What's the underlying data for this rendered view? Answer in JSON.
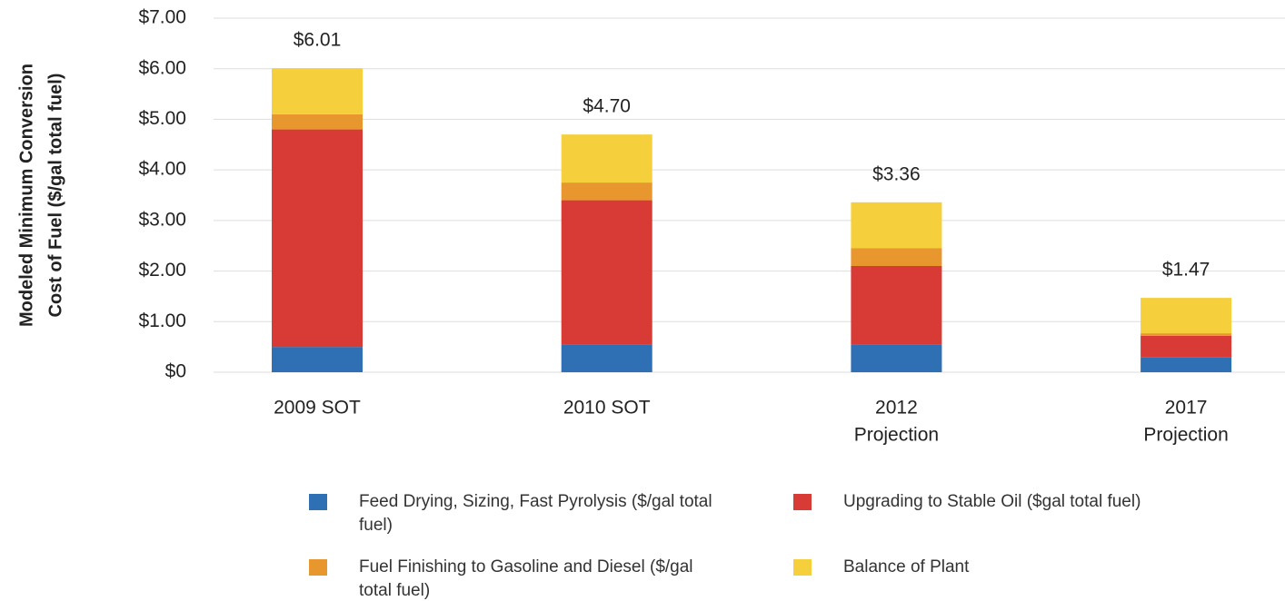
{
  "chart_data": {
    "type": "stacked_bar",
    "ylabel": [
      "Modeled Minimum Conversion",
      "Cost of Fuel ($/gal total fuel)"
    ],
    "categories": [
      [
        "2009 SOT"
      ],
      [
        "2010 SOT"
      ],
      [
        "2012",
        "Projection"
      ],
      [
        "2017",
        "Projection"
      ]
    ],
    "series": [
      {
        "name": "Feed Drying, Sizing, Fast Pyrolysis ($/gal total fuel)",
        "color": "#2f6fb3",
        "values": [
          0.5,
          0.55,
          0.55,
          0.3
        ]
      },
      {
        "name": "Upgrading to Stable Oil ($gal total fuel)",
        "color": "#d83a36",
        "values": [
          4.3,
          2.85,
          1.55,
          0.42
        ]
      },
      {
        "name": "Fuel Finishing to Gasoline and Diesel ($/gal total fuel)",
        "color": "#e8962e",
        "values": [
          0.3,
          0.35,
          0.35,
          0.05
        ]
      },
      {
        "name": "Balance of Plant",
        "color": "#f5d03c",
        "values": [
          0.91,
          0.95,
          0.91,
          0.7
        ]
      }
    ],
    "totals": [
      6.01,
      4.7,
      3.36,
      1.47
    ],
    "total_labels": [
      "$6.01",
      "$4.70",
      "$3.36",
      "$1.47"
    ],
    "ylim": [
      0,
      7
    ],
    "yticks": [
      {
        "value": 0,
        "label": "$0"
      },
      {
        "value": 1,
        "label": "$1.00"
      },
      {
        "value": 2,
        "label": "$2.00"
      },
      {
        "value": 3,
        "label": "$3.00"
      },
      {
        "value": 4,
        "label": "$4.00"
      },
      {
        "value": 5,
        "label": "$5.00"
      },
      {
        "value": 6,
        "label": "$6.00"
      },
      {
        "value": 7,
        "label": "$7.00"
      }
    ],
    "grid": true
  }
}
